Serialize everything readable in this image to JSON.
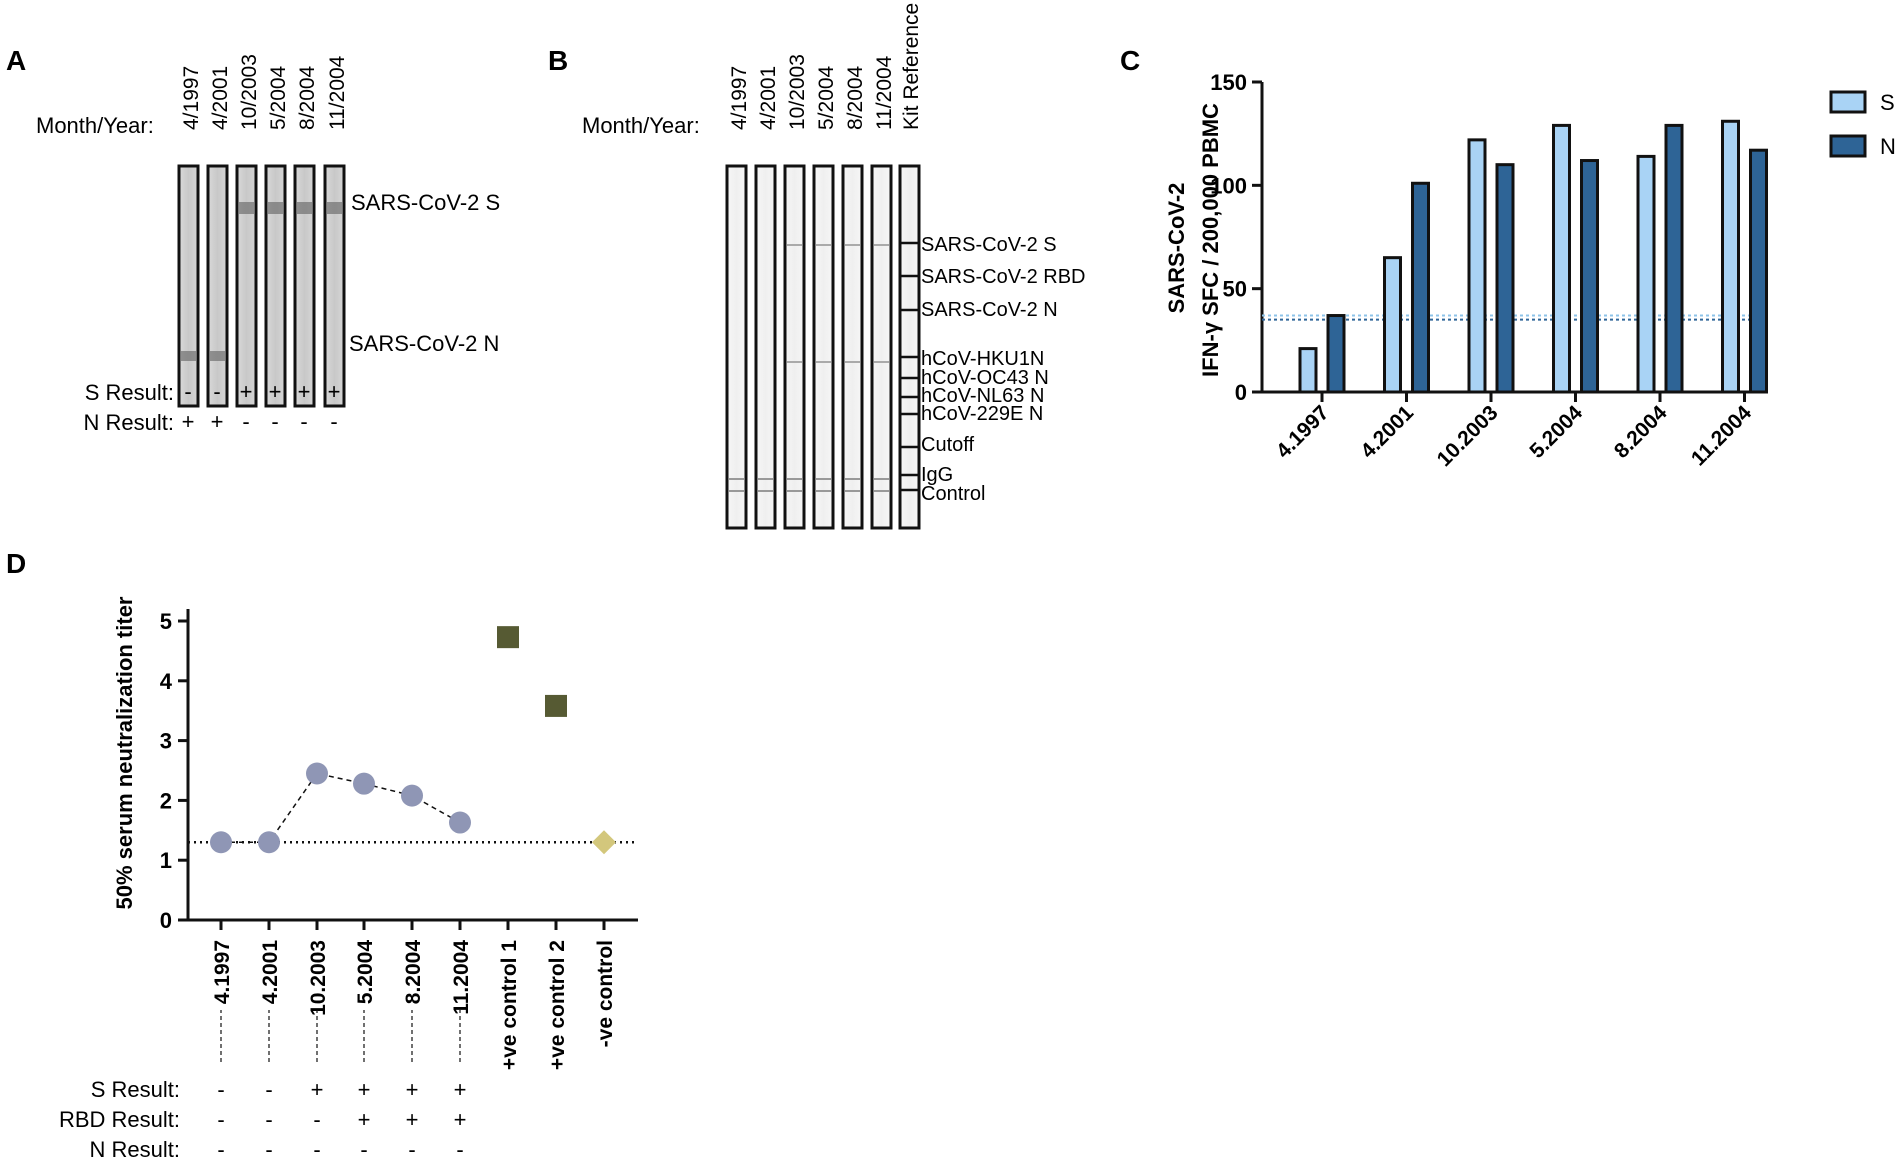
{
  "panelA": {
    "letter": "A",
    "month_year_label": "Month/Year:",
    "dates": [
      "4/1997",
      "4/2001",
      "10/2003",
      "5/2004",
      "8/2004",
      "11/2004"
    ],
    "band_labels": [
      "SARS-CoV-2 S",
      "SARS-CoV-2 N"
    ],
    "s_result_label": "S Result:",
    "n_result_label": "N Result:",
    "s_results": [
      "-",
      "-",
      "+",
      "+",
      "+",
      "+"
    ],
    "n_results": [
      "+",
      "+",
      "-",
      "-",
      "-",
      "-"
    ]
  },
  "panelB": {
    "letter": "B",
    "month_year_label": "Month/Year:",
    "dates": [
      "4/1997",
      "4/2001",
      "10/2003",
      "5/2004",
      "8/2004",
      "11/2004"
    ],
    "kit_reference": "Kit Reference",
    "band_labels": [
      "SARS-CoV-2 S",
      "SARS-CoV-2 RBD",
      "SARS-CoV-2 N",
      "hCoV-HKU1N",
      "hCoV-OC43 N",
      "hCoV-NL63 N",
      "hCoV-229E N",
      "Cutoff",
      "IgG",
      "Control"
    ]
  },
  "panelC": {
    "letter": "C",
    "ylabel_line1": "SARS-CoV-2",
    "ylabel_line2": "IFN-γ SFC / 200,000 PBMC",
    "colors": {
      "S": "#a9d3f5",
      "N": "#2e6496",
      "cutoff_S": "#8ec3e8",
      "cutoff_N": "#2e6496"
    },
    "chart_data": {
      "type": "bar",
      "categories": [
        "4.1997",
        "4.2001",
        "10.2003",
        "5.2004",
        "8.2004",
        "11.2004"
      ],
      "series": [
        {
          "name": "S",
          "values": [
            21,
            65,
            122,
            129,
            114,
            131
          ]
        },
        {
          "name": "N",
          "values": [
            37,
            101,
            110,
            112,
            129,
            117
          ]
        }
      ],
      "yticks": [
        0,
        50,
        100,
        150
      ],
      "ylim": [
        0,
        150
      ],
      "cutoffs": {
        "S": 37,
        "N": 35
      },
      "legend": [
        "S",
        "N"
      ],
      "legend_position": "top-right"
    }
  },
  "panelD": {
    "letter": "D",
    "ylabel": "50% serum neutralization titer",
    "colors": {
      "sample": "#8f96b5",
      "pos_control": "#565a33",
      "neg_control": "#d3c77c"
    },
    "chart_data": {
      "type": "scatter",
      "categories": [
        "4.1997",
        "4.2001",
        "10.2003",
        "5.2004",
        "8.2004",
        "11.2004",
        "+ve control 1",
        "+ve control 2",
        "-ve control"
      ],
      "values": [
        1.3,
        1.3,
        2.45,
        2.28,
        2.08,
        1.63,
        4.73,
        3.58,
        1.3
      ],
      "marker": [
        "circle",
        "circle",
        "circle",
        "circle",
        "circle",
        "circle",
        "square",
        "square",
        "diamond"
      ],
      "connected_series": [
        0,
        1,
        2,
        3,
        4,
        5
      ],
      "yticks": [
        0,
        1,
        2,
        3,
        4,
        5
      ],
      "ylim": [
        0,
        5.2
      ],
      "cutoff": 1.3
    },
    "rows": {
      "s_label": "S Result:",
      "rbd_label": "RBD Result:",
      "n_label": "N Result:",
      "s": [
        "-",
        "-",
        "+",
        "+",
        "+",
        "+"
      ],
      "rbd": [
        "-",
        "-",
        "-",
        "+",
        "+",
        "+"
      ],
      "n": [
        "-",
        "-",
        "-",
        "-",
        "-",
        "-"
      ]
    }
  }
}
